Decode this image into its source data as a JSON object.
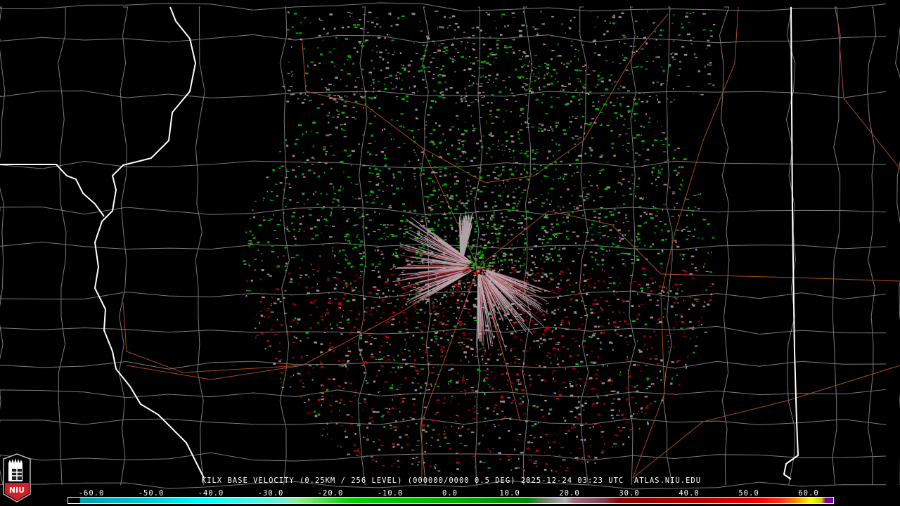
{
  "product": {
    "title": "KILX BASE VELOCITY (0.25KM / 256 LEVEL) (000000/0000 0.5 DEG) 2025-12-24 03:23 UTC  ATLAS.NIU.EDU",
    "station": "KILX",
    "timestamp": "2025-12-24 03:23 UTC",
    "source": "ATLAS.NIU.EDU"
  },
  "legend": {
    "ticks": [
      "-60.0",
      "-50.0",
      "-40.0",
      "-30.0",
      "-20.0",
      "-10.0",
      "0.0",
      "10.0",
      "20.0",
      "30.0",
      "40.0",
      "50.0",
      "60.0"
    ],
    "tick_values": [
      -60,
      -50,
      -40,
      -30,
      -20,
      -10,
      0,
      10,
      20,
      30,
      40,
      50,
      60
    ],
    "range": [
      -64,
      64
    ],
    "colors": {
      "inbound_far": "#00a0b0",
      "cyan": "#00ffff",
      "light_green": "#90ee90",
      "green": "#00d000",
      "dark_green": "#008800",
      "zero": "#999999",
      "pink": "#a07080",
      "dark_red": "#8b0000",
      "red": "#ee0000",
      "orange": "#ff8000",
      "yellow": "#ffff00",
      "olive": "#c8c800",
      "range_folded": "#8000a0"
    }
  },
  "logo": {
    "text": "NIU"
  },
  "map_colors": {
    "state_border": "#ffffff",
    "county_border": "#888888",
    "roads": "#b05020",
    "background": "#000000"
  }
}
